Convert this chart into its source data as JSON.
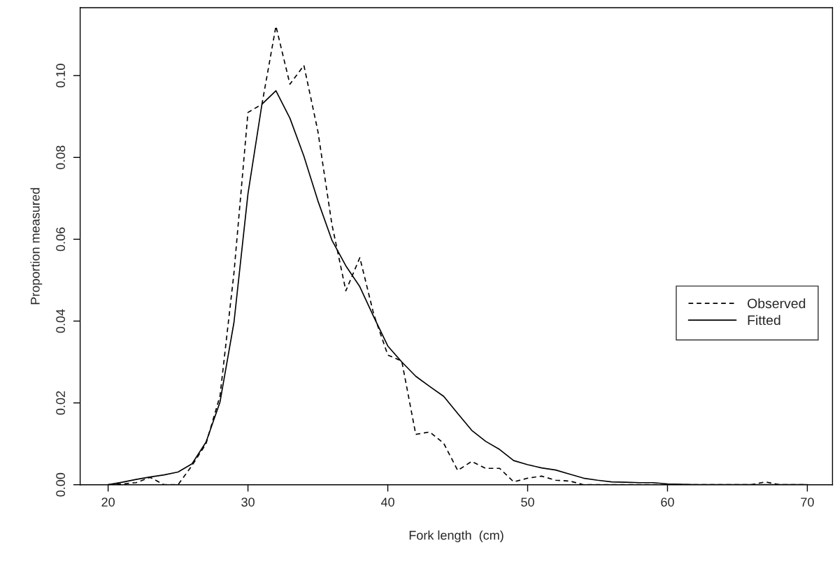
{
  "chart_data": {
    "type": "line",
    "xlabel": "Fork length  (cm)",
    "ylabel": "Proportion measured",
    "x": [
      20,
      21,
      22,
      23,
      24,
      25,
      26,
      27,
      28,
      29,
      30,
      31,
      32,
      33,
      34,
      35,
      36,
      37,
      38,
      39,
      40,
      41,
      42,
      43,
      44,
      45,
      46,
      47,
      48,
      49,
      50,
      51,
      52,
      53,
      54,
      55,
      56,
      57,
      58,
      59,
      60,
      61,
      62,
      63,
      64,
      65,
      66,
      67,
      68,
      69,
      70
    ],
    "series": [
      {
        "name": "Observed",
        "color": "#000000",
        "line_style": "dashed",
        "values": [
          0,
          0.0002,
          0.0005,
          0.0018,
          0,
          0,
          0.0047,
          0.01,
          0.0217,
          0.0518,
          0.091,
          0.093,
          0.1121,
          0.0979,
          0.1025,
          0.0864,
          0.0637,
          0.0474,
          0.0555,
          0.0416,
          0.0317,
          0.0302,
          0.0123,
          0.0129,
          0.0101,
          0.0035,
          0.0057,
          0.004,
          0.004,
          0.0007,
          0.0016,
          0.0021,
          0.0011,
          0.0009,
          0,
          0,
          0,
          0,
          0,
          0,
          0,
          0,
          0,
          0,
          0,
          0,
          0,
          0.0007,
          0,
          0,
          0
        ]
      },
      {
        "name": "Fitted",
        "color": "#000000",
        "line_style": "solid",
        "values": [
          0,
          0.0006,
          0.0013,
          0.0019,
          0.0024,
          0.0031,
          0.0051,
          0.0104,
          0.0202,
          0.0397,
          0.0711,
          0.093,
          0.0963,
          0.0896,
          0.0803,
          0.0694,
          0.0598,
          0.0535,
          0.0484,
          0.041,
          0.0339,
          0.03,
          0.0265,
          0.024,
          0.0216,
          0.0174,
          0.0133,
          0.0106,
          0.0086,
          0.0059,
          0.0049,
          0.0041,
          0.0036,
          0.0026,
          0.0016,
          0.0011,
          0.0007,
          0.0006,
          0.0005,
          0.0005,
          0.0002,
          0.0001,
          0,
          0,
          0,
          0,
          0,
          0,
          0,
          0,
          0
        ]
      }
    ],
    "xlim": [
      18,
      71.8
    ],
    "ylim": [
      0,
      0.1166
    ],
    "xticks": [
      20,
      30,
      40,
      50,
      60,
      70
    ],
    "yticks": [
      {
        "value": 0,
        "label": "0.00"
      },
      {
        "value": 0.02,
        "label": "0.02"
      },
      {
        "value": 0.04,
        "label": "0.04"
      },
      {
        "value": 0.06,
        "label": "0.06"
      },
      {
        "value": 0.08,
        "label": "0.08"
      },
      {
        "value": 0.1,
        "label": "0.10"
      }
    ],
    "grid": false,
    "legend": "right",
    "marker": "none"
  }
}
